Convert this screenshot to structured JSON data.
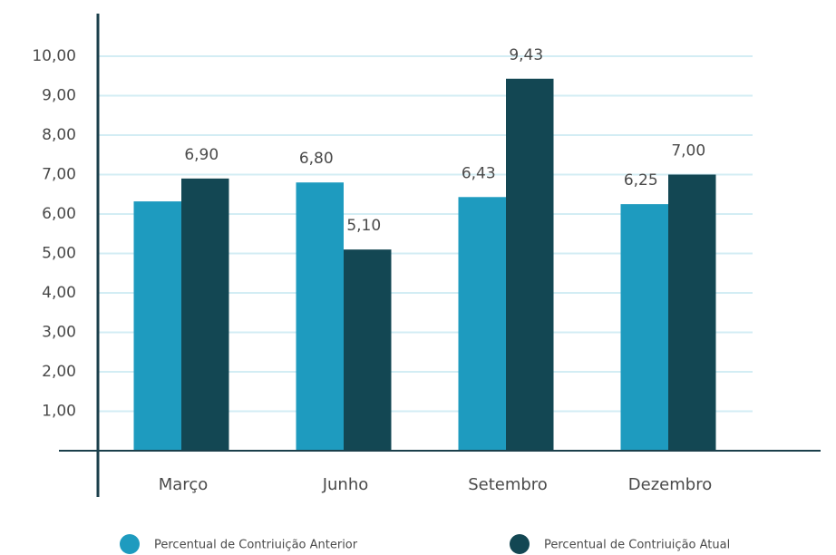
{
  "chart_data": {
    "type": "bar",
    "categories": [
      "Março",
      "Junho",
      "Setembro",
      "Dezembro"
    ],
    "series": [
      {
        "name": "Percentual de Contriuição Anterior",
        "color": "#1e9bbf",
        "values": [
          6.32,
          6.8,
          6.43,
          6.25
        ],
        "value_labels": [
          null,
          "6,80",
          "6,43",
          "6,25"
        ]
      },
      {
        "name": "Percentual de Contriuição Atual",
        "color": "#134753",
        "values": [
          6.9,
          5.1,
          9.43,
          7.0
        ],
        "value_labels": [
          "6,90",
          "5,10",
          "9,43",
          "7,00"
        ]
      }
    ],
    "ylim": [
      0,
      11
    ],
    "yticks": [
      {
        "value": 1,
        "label": "1,00"
      },
      {
        "value": 2,
        "label": "2,00"
      },
      {
        "value": 3,
        "label": "3,00"
      },
      {
        "value": 4,
        "label": "4,00"
      },
      {
        "value": 5,
        "label": "5,00"
      },
      {
        "value": 6,
        "label": "6,00"
      },
      {
        "value": 7,
        "label": "7,00"
      },
      {
        "value": 8,
        "label": "8,00"
      },
      {
        "value": 9,
        "label": "9,00"
      },
      {
        "value": 10,
        "label": "10,00"
      }
    ],
    "grid": true,
    "legend": "bottom"
  }
}
